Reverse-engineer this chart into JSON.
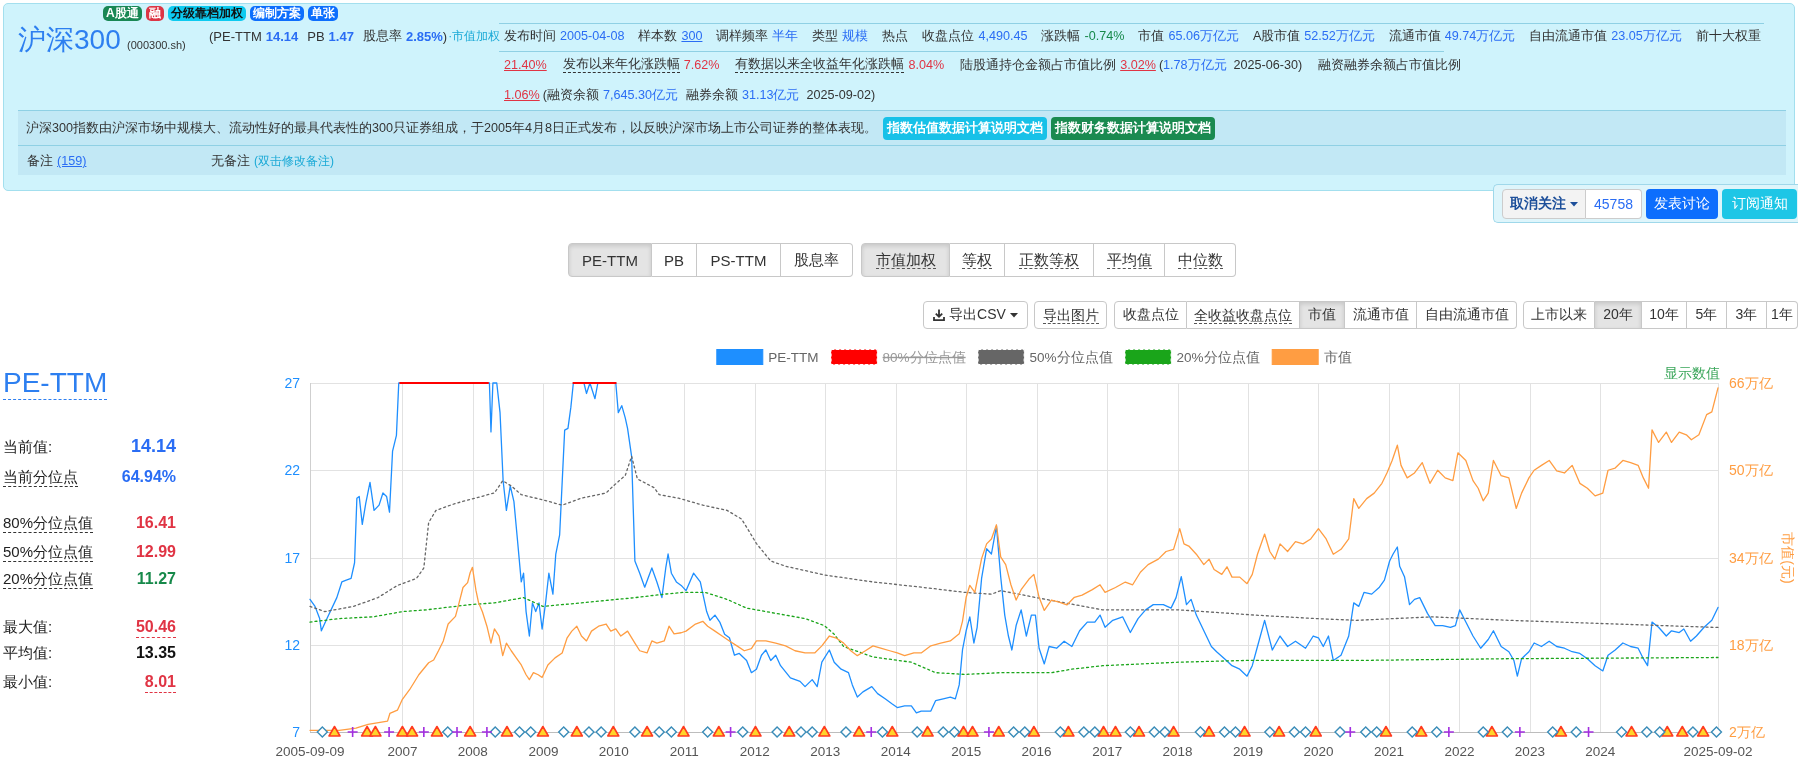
{
  "chart_data": [
    {
      "type": "other",
      "title": "沪深300",
      "subtitle": "(000300.sh)",
      "annotations": [
        "A股通",
        "融",
        "分级靠档加权",
        "编制方案",
        "单张",
        "(PE-TTM",
        "14.14",
        "PB",
        "1.47",
        "股息率",
        "2.85%",
        ")",
        "·市值加权",
        "发布时间",
        "2005-04-08",
        "样本数",
        "300",
        "调样频率",
        "半年",
        "类型",
        "规模",
        "热点",
        "收盘点位",
        "4,490.45",
        "涨跌幅",
        "-0.74%",
        "市值",
        "65.06万亿元",
        "A股市值",
        "52.52万亿元",
        "流通市值",
        "49.74万亿元",
        "自由流通市值",
        "23.05万亿元",
        "前十大权重",
        "21.40%",
        "发布以来年化涨跌幅",
        "7.62%",
        "有数据以来全收益年化涨跌幅",
        "8.04%",
        "陆股通持仓金额占市值比例",
        "3.02%",
        "(",
        "1.78万亿元",
        "2025-06-30)",
        "融资融券余额占市值比例",
        "1.06%",
        "(",
        "融资余额",
        "7,645.30亿元",
        "融券余额",
        "31.13亿元",
        "2025-09-02)",
        "沪深300指数由沪深市场中规模大、流动性好的最具代表性的300只证券组成，于2005年4月8日正式发布，以反映沪深市场上市公司证券的整体表现。",
        "指数估值数据计算说明文档",
        "指数财务数据计算说明文档",
        "备注",
        "(159)",
        "无备注",
        "(双击修改备注)",
        "取消关注",
        "45758",
        "发表讨论",
        "订阅通知"
      ]
    },
    {
      "type": "other",
      "annotations": [
        "PE-TTM",
        "PB",
        "PS-TTM",
        "股息率",
        "市值加权",
        "等权",
        "正数等权",
        "平均值",
        "中位数",
        "导出CSV",
        "导出图片",
        "收盘点位",
        "全收益收盘点位",
        "市值",
        "流通市值",
        "自由流通市值",
        "上市以来",
        "20年",
        "10年",
        "5年",
        "3年",
        "1年"
      ]
    },
    {
      "type": "other",
      "title": "PE-TTM",
      "annotations": [
        "当前值:",
        "14.14",
        "当前分位点",
        "64.94%",
        "80%分位点值",
        "16.41",
        "50%分位点值",
        "12.99",
        "20%分位点值",
        "11.27",
        "最大值:",
        "50.46",
        "平均值:",
        "13.35",
        "最小值:",
        "8.01"
      ]
    },
    {
      "type": "line",
      "legend": "top",
      "grid": true,
      "annotations": [
        "显示数值"
      ],
      "xlim": [
        "2005-09-09",
        "2025-09-02"
      ],
      "xticks": [
        "2005-09-09",
        "2007",
        "2008",
        "2009",
        "2010",
        "2011",
        "2012",
        "2013",
        "2014",
        "2015",
        "2016",
        "2017",
        "2018",
        "2019",
        "2020",
        "2021",
        "2022",
        "2023",
        "2024",
        "2025-09-02"
      ],
      "ylim": [
        7,
        27
      ],
      "yticks": [
        7,
        12,
        17,
        22,
        27
      ],
      "y2lim": [
        2,
        66
      ],
      "y2ticks": [
        {
          "value": 2,
          "label": "2万亿"
        },
        {
          "value": 18,
          "label": "18万亿"
        },
        {
          "value": 34,
          "label": "34万亿"
        },
        {
          "value": 50,
          "label": "50万亿"
        },
        {
          "value": 66,
          "label": "66万亿"
        }
      ],
      "y2label": "市值(元)",
      "series": [
        {
          "name": "PE-TTM",
          "color": "#1e8fff",
          "x": [
            "2005-09-09",
            "2005-10-05",
            "2005-10-29",
            "2005-11-07",
            "2005-12-06",
            "2006-01-26",
            "2006-02-21",
            "2006-03-16",
            "2006-04-10",
            "2006-04-28",
            "2006-05-10",
            "2006-05-22",
            "2006-06-07",
            "2006-06-25",
            "2006-07-17",
            "2006-08-07",
            "2006-09-02",
            "2006-09-22",
            "2006-10-11",
            "2006-10-26",
            "2006-11-11",
            "2006-12-01",
            "2006-12-13",
            "2008-03-27",
            "2008-04-04",
            "2008-04-14",
            "2008-05-04",
            "2008-05-21",
            "2008-06-06",
            "2008-06-23",
            "2008-07-13",
            "2008-08-01",
            "2008-08-21",
            "2008-09-08",
            "2008-09-20",
            "2008-10-03",
            "2008-10-20",
            "2008-11-05",
            "2008-11-22",
            "2008-12-09",
            "2008-12-25",
            "2009-01-12",
            "2009-01-29",
            "2009-02-19",
            "2009-03-06",
            "2009-03-26",
            "2009-04-21",
            "2009-05-08",
            "2009-05-23",
            "2009-06-05",
            "2009-07-30",
            "2009-08-12",
            "2009-08-30",
            "2009-09-25",
            "2009-10-10",
            "2010-01-11",
            "2010-01-24",
            "2010-02-11",
            "2010-03-01",
            "2010-03-13",
            "2010-04-03",
            "2010-04-20",
            "2010-05-15",
            "2010-06-10",
            "2010-06-30",
            "2010-07-17",
            "2010-08-12",
            "2010-09-07",
            "2010-09-27",
            "2010-10-09",
            "2010-10-26",
            "2010-11-21",
            "2010-12-16",
            "2011-01-10",
            "2011-02-18",
            "2011-03-25",
            "2011-04-27",
            "2011-05-14",
            "2011-06-09",
            "2011-07-04",
            "2011-07-29",
            "2011-08-23",
            "2011-09-18",
            "2011-10-13",
            "2011-11-20",
            "2011-12-15",
            "2012-01-10",
            "2012-02-05",
            "2012-02-28",
            "2012-03-24",
            "2012-04-19",
            "2012-05-14",
            "2012-07-04",
            "2012-08-23",
            "2012-09-18",
            "2012-10-25",
            "2012-11-20",
            "2012-12-14",
            "2013-01-22",
            "2013-02-16",
            "2013-03-24",
            "2013-05-01",
            "2013-05-21",
            "2013-06-16",
            "2013-07-15",
            "2013-08-30",
            "2013-09-29",
            "2013-11-07",
            "2013-12-14",
            "2014-01-09",
            "2014-02-16",
            "2014-03-23",
            "2014-04-18",
            "2014-05-13",
            "2014-07-02",
            "2014-07-27",
            "2014-09-04",
            "2014-10-11",
            "2014-11-06",
            "2014-11-26",
            "2014-12-13",
            "2015-01-01",
            "2015-01-20",
            "2015-02-10",
            "2015-02-27",
            "2015-03-22",
            "2015-04-17",
            "2015-05-12",
            "2015-06-07",
            "2015-06-29",
            "2015-07-20",
            "2015-08-08",
            "2015-08-26",
            "2015-09-17",
            "2015-10-13",
            "2015-11-09",
            "2015-12-05",
            "2015-12-26",
            "2016-01-14",
            "2016-02-10",
            "2016-03-06",
            "2016-04-14",
            "2016-05-23",
            "2016-07-02",
            "2016-08-11",
            "2016-09-20",
            "2016-10-29",
            "2016-11-25",
            "2016-12-21",
            "2017-01-30",
            "2017-03-22",
            "2017-05-01",
            "2017-06-10",
            "2017-07-19",
            "2017-08-28",
            "2017-10-19",
            "2017-11-28",
            "2017-12-24",
            "2018-01-20",
            "2018-02-16",
            "2018-03-12",
            "2018-04-08",
            "2018-05-17",
            "2018-06-25",
            "2018-07-22",
            "2018-09-01",
            "2018-10-10",
            "2018-11-19",
            "2018-12-27",
            "2019-01-23",
            "2019-02-19",
            "2019-03-28",
            "2019-05-07",
            "2019-06-16",
            "2019-07-25",
            "2019-09-04",
            "2019-10-26",
            "2019-12-05",
            "2020-01-01",
            "2020-01-26",
            "2020-02-22",
            "2020-03-18",
            "2020-04-27",
            "2020-06-06",
            "2020-07-02",
            "2020-07-28",
            "2020-08-24",
            "2020-10-03",
            "2020-11-12",
            "2020-12-08",
            "2021-01-04",
            "2021-01-22",
            "2021-02-13",
            "2021-02-25",
            "2021-03-22",
            "2021-04-17",
            "2021-05-13",
            "2021-06-09",
            "2021-07-19",
            "2021-08-28",
            "2021-10-06",
            "2021-11-15",
            "2021-12-11",
            "2022-01-02",
            "2022-02-03",
            "2022-03-12",
            "2022-04-21",
            "2022-05-30",
            "2022-06-26",
            "2022-08-05",
            "2022-09-14",
            "2022-10-10",
            "2022-10-28",
            "2022-11-19",
            "2022-12-27",
            "2023-01-23",
            "2023-03-02",
            "2023-04-11",
            "2023-05-20",
            "2023-06-29",
            "2023-08-08",
            "2023-09-17",
            "2023-10-26",
            "2023-12-05",
            "2024-01-14",
            "2024-02-10",
            "2024-03-18",
            "2024-04-27",
            "2024-06-06",
            "2024-07-15",
            "2024-08-11",
            "2024-09-02",
            "2024-09-25",
            "2024-10-29",
            "2024-12-08",
            "2025-01-04",
            "2025-02-13",
            "2025-03-09",
            "2025-04-13",
            "2025-05-13",
            "2025-06-22",
            "2025-08-01",
            "2025-09-02"
          ],
          "values": [
            14.6,
            14.2,
            13.5,
            12.8,
            13.5,
            14.7,
            15.6,
            15.7,
            15.8,
            16.7,
            20.4,
            20.5,
            18.9,
            20.1,
            21.3,
            19.7,
            20.0,
            20.7,
            20.5,
            19.6,
            23.1,
            24.0,
            27,
            27,
            24.2,
            27,
            27,
            25.3,
            21.4,
            19.7,
            21.1,
            20.2,
            17.8,
            15.6,
            16.1,
            13.9,
            12.5,
            14.4,
            13.9,
            14.4,
            12.9,
            14.4,
            16.1,
            14.9,
            17.2,
            18.3,
            24.3,
            24.4,
            25.6,
            27,
            27,
            26.4,
            27,
            26.1,
            27,
            27,
            25.3,
            25.7,
            25.0,
            24.4,
            22.8,
            16.8,
            16.1,
            15.3,
            15.9,
            16.4,
            15.6,
            14.7,
            16.4,
            17.2,
            16.1,
            15.6,
            15.4,
            15.1,
            16.1,
            15.6,
            13.9,
            13.4,
            13.7,
            13.3,
            12.6,
            12.4,
            11.4,
            11.5,
            11.1,
            10.4,
            10.6,
            11.4,
            11.7,
            11.1,
            11.4,
            10.8,
            10.1,
            9.9,
            9.6,
            10.0,
            9.6,
            11.0,
            11.7,
            11.0,
            10.6,
            10.4,
            9.7,
            9.0,
            9.3,
            9.6,
            9.2,
            8.9,
            8.6,
            8.4,
            8.5,
            8.5,
            8.1,
            8.2,
            8.2,
            8.8,
            8.9,
            9.0,
            8.9,
            9.7,
            11.7,
            12.8,
            13.6,
            12.1,
            13.0,
            15.8,
            17.5,
            17.2,
            18.8,
            15.9,
            13.7,
            12.5,
            11.7,
            13.1,
            14.0,
            12.5,
            13.7,
            13.7,
            11.8,
            10.9,
            11.9,
            11.8,
            12.2,
            11.9,
            12.8,
            13.3,
            13.3,
            13.7,
            13.0,
            13.4,
            13.6,
            12.7,
            13.5,
            14.0,
            14.3,
            14.3,
            14.1,
            14.7,
            15.9,
            14.3,
            14.6,
            13.7,
            12.8,
            11.9,
            11.6,
            11.2,
            10.8,
            10.6,
            10.2,
            10.8,
            11.9,
            13.4,
            11.7,
            12.5,
            11.9,
            12.2,
            11.8,
            12.5,
            12.4,
            11.9,
            12.5,
            11.1,
            11.4,
            12.5,
            14.4,
            14.2,
            15.0,
            14.9,
            15.3,
            15.7,
            16.8,
            17.2,
            17.6,
            16.5,
            15.9,
            14.3,
            14.6,
            14.7,
            13.8,
            13.1,
            13.1,
            13.0,
            13.1,
            14.0,
            13.3,
            12.5,
            11.8,
            12.3,
            12.8,
            11.9,
            11.6,
            11.1,
            10.2,
            11.2,
            11.6,
            12.1,
            11.9,
            12.2,
            11.9,
            11.8,
            11.6,
            11.5,
            11.2,
            10.8,
            10.5,
            11.4,
            11.7,
            12.1,
            11.9,
            11.8,
            11.2,
            10.8,
            13.3,
            13.0,
            12.5,
            12.8,
            12.7,
            12.9,
            12.2,
            12.5,
            13.0,
            13.4,
            14.14
          ]
        },
        {
          "name": "80%分位点值",
          "color": "#ff0000",
          "line_style": "dotted"
        },
        {
          "name": "50%分位点值",
          "color": "#666666",
          "line_style": "dotted",
          "x": [
            "2005-09-09",
            "2005-11-24",
            "2006-04-23",
            "2006-08-27",
            "2006-12-06",
            "2007-03-15",
            "2007-04-22",
            "2007-05-17",
            "2007-06-24",
            "2007-10-03",
            "2008-01-13",
            "2008-04-22",
            "2008-06-04",
            "2008-07-18",
            "2008-09-08",
            "2008-12-29",
            "2009-04-08",
            "2009-07-17",
            "2009-11-22",
            "2009-12-29",
            "2010-03-01",
            "2010-04-03",
            "2010-05-03",
            "2010-07-29",
            "2010-08-24",
            "2010-12-03",
            "2011-04-07",
            "2011-08-11",
            "2011-10-25",
            "2011-12-03",
            "2012-01-10",
            "2012-03-24",
            "2012-06-09",
            "2012-12-27",
            "2013-09-05",
            "2014-05-13",
            "2014-12-26",
            "2015-05-12",
            "2015-06-29",
            "2016-01-01",
            "2016-12-08",
            "2018-01-07",
            "2019-02-06",
            "2019-12-18",
            "2020-07-15",
            "2021-08-14",
            "2022-09-14",
            "2024-02-22",
            "2025-09-02"
          ],
          "values": [
            14.2,
            13.9,
            14.2,
            14.7,
            15.4,
            15.8,
            16.4,
            19.0,
            19.7,
            20.1,
            20.4,
            20.7,
            21.4,
            21.1,
            20.6,
            20.3,
            20.0,
            20.4,
            20.7,
            21.1,
            21.7,
            22.8,
            21.5,
            21.0,
            20.6,
            20.4,
            20.0,
            19.7,
            19.2,
            18.5,
            17.8,
            16.8,
            16.5,
            16.0,
            15.6,
            15.3,
            15.0,
            14.9,
            15.1,
            14.7,
            14.0,
            14.0,
            13.7,
            13.5,
            13.4,
            13.6,
            13.4,
            13.2,
            12.99
          ]
        },
        {
          "name": "20%分位点值",
          "color": "#1aa51a",
          "line_style": "dotted",
          "x": [
            "2005-09-09",
            "2006-02-08",
            "2006-08-02",
            "2007-01-01",
            "2007-05-04",
            "2007-12-18",
            "2008-04-22",
            "2008-09-20",
            "2008-12-29",
            "2009-07-17",
            "2010-04-20",
            "2010-09-19",
            "2010-12-28",
            "2011-04-20",
            "2011-08-11",
            "2011-11-20",
            "2012-04-19",
            "2012-09-18",
            "2012-12-27",
            "2013-02-16",
            "2013-04-06",
            "2013-09-05",
            "2014-03-23",
            "2014-07-27",
            "2014-12-26",
            "2015-06-29",
            "2016-03-18",
            "2016-07-02",
            "2016-12-08",
            "2018-01-07",
            "2018-12-14",
            "2020-07-15",
            "2022-09-14",
            "2025-09-02"
          ],
          "values": [
            13.3,
            13.5,
            13.6,
            13.9,
            14.0,
            14.3,
            14.4,
            14.7,
            14.2,
            14.4,
            14.7,
            14.9,
            15.0,
            15.0,
            14.6,
            14.1,
            13.8,
            13.5,
            13.1,
            12.6,
            11.9,
            11.3,
            11.0,
            10.4,
            10.3,
            10.4,
            10.4,
            10.6,
            10.8,
            11.0,
            11.1,
            11.1,
            11.2,
            11.27
          ]
        },
        {
          "name": "市值",
          "color": "#ff9d42",
          "axis": "y2",
          "x": [
            "2005-09-09",
            "2006-02-08",
            "2006-05-05",
            "2006-07-07",
            "2006-10-16",
            "2006-10-28",
            "2006-12-06",
            "2007-01-01",
            "2007-02-08",
            "2007-03-27",
            "2007-05-17",
            "2007-06-12",
            "2007-07-07",
            "2007-08-01",
            "2007-08-26",
            "2007-10-03",
            "2007-10-16",
            "2007-11-11",
            "2007-12-05",
            "2007-12-18",
            "2007-12-30",
            "2008-01-17",
            "2008-01-30",
            "2008-02-20",
            "2008-03-14",
            "2008-04-04",
            "2008-04-22",
            "2008-05-16",
            "2008-06-04",
            "2008-06-23",
            "2008-07-18",
            "2008-08-13",
            "2008-09-08",
            "2008-10-03",
            "2008-10-20",
            "2008-11-10",
            "2008-12-05",
            "2008-12-25",
            "2009-01-24",
            "2009-03-02",
            "2009-04-08",
            "2009-05-03",
            "2009-05-28",
            "2009-06-23",
            "2009-07-17",
            "2009-08-12",
            "2009-09-07",
            "2009-10-14",
            "2009-11-22",
            "2009-12-16",
            "2010-01-11",
            "2010-02-06",
            "2010-03-13",
            "2010-04-20",
            "2010-05-15",
            "2010-06-22",
            "2010-07-17",
            "2010-08-12",
            "2010-09-19",
            "2010-10-14",
            "2010-11-09",
            "2010-12-16",
            "2011-01-10",
            "2011-02-28",
            "2011-04-07",
            "2011-05-02",
            "2011-06-09",
            "2011-07-16",
            "2011-08-23",
            "2011-10-01",
            "2011-11-08",
            "2011-12-15",
            "2012-01-10",
            "2012-02-28",
            "2012-04-19",
            "2012-06-09",
            "2012-07-28",
            "2012-09-18",
            "2012-11-07",
            "2012-12-14",
            "2013-01-22",
            "2013-02-28",
            "2013-04-06",
            "2013-05-13",
            "2013-06-16",
            "2013-07-28",
            "2013-09-05",
            "2013-10-24",
            "2013-12-01",
            "2014-01-09",
            "2014-02-16",
            "2014-04-05",
            "2014-05-13",
            "2014-07-02",
            "2014-08-22",
            "2014-10-11",
            "2014-11-26",
            "2014-12-13",
            "2015-01-01",
            "2015-01-20",
            "2015-02-15",
            "2015-03-22",
            "2015-04-17",
            "2015-05-12",
            "2015-06-07",
            "2015-06-29",
            "2015-07-25",
            "2015-08-21",
            "2015-09-17",
            "2015-10-13",
            "2015-11-22",
            "2015-12-18",
            "2016-01-14",
            "2016-02-10",
            "2016-03-18",
            "2016-04-27",
            "2016-06-06",
            "2016-07-15",
            "2016-08-24",
            "2016-10-16",
            "2016-11-25",
            "2016-12-21",
            "2017-02-13",
            "2017-04-05",
            "2017-05-13",
            "2017-06-22",
            "2017-08-01",
            "2017-09-23",
            "2017-11-02",
            "2017-12-11",
            "2018-01-12",
            "2018-02-03",
            "2018-02-28",
            "2018-04-08",
            "2018-05-17",
            "2018-06-13",
            "2018-07-09",
            "2018-08-18",
            "2018-09-14",
            "2018-10-10",
            "2018-11-19",
            "2018-12-27",
            "2019-01-23",
            "2019-02-19",
            "2019-03-28",
            "2019-04-24",
            "2019-05-20",
            "2019-06-16",
            "2019-07-25",
            "2019-09-04",
            "2019-10-13",
            "2019-11-22",
            "2020-01-01",
            "2020-02-10",
            "2020-03-18",
            "2020-04-27",
            "2020-06-06",
            "2020-07-02",
            "2020-07-28",
            "2020-09-07",
            "2020-10-16",
            "2020-11-25",
            "2020-12-21",
            "2021-01-17",
            "2021-02-13",
            "2021-03-04",
            "2021-04-05",
            "2021-05-13",
            "2021-06-22",
            "2021-08-01",
            "2021-09-10",
            "2021-10-19",
            "2021-11-28",
            "2021-12-24",
            "2022-02-03",
            "2022-03-12",
            "2022-04-08",
            "2022-05-04",
            "2022-05-30",
            "2022-06-26",
            "2022-08-05",
            "2022-09-14",
            "2022-10-22",
            "2022-11-19",
            "2022-12-27",
            "2023-01-23",
            "2023-03-02",
            "2023-04-11",
            "2023-05-20",
            "2023-06-29",
            "2023-08-08",
            "2023-09-17",
            "2023-10-26",
            "2023-12-05",
            "2024-01-14",
            "2024-02-10",
            "2024-03-18",
            "2024-04-27",
            "2024-06-06",
            "2024-07-15",
            "2024-08-11",
            "2024-09-07",
            "2024-09-25",
            "2024-10-29",
            "2024-12-08",
            "2025-01-04",
            "2025-02-13",
            "2025-03-22",
            "2025-04-17",
            "2025-05-26",
            "2025-07-05",
            "2025-08-01",
            "2025-09-02"
          ],
          "values": [
            2.3,
            2.3,
            2.7,
            3.4,
            4.0,
            5.4,
            6.0,
            8.0,
            9.8,
            12.5,
            14.7,
            15.2,
            16.9,
            18.7,
            21.8,
            23.2,
            24.9,
            28.5,
            29.4,
            31.2,
            32.2,
            28.0,
            25.8,
            24.0,
            21.4,
            18.3,
            20.9,
            19.6,
            16.0,
            18.3,
            16.9,
            15.6,
            14.3,
            12.5,
            11.6,
            12.9,
            12.5,
            12.0,
            14.3,
            15.6,
            16.5,
            19.2,
            20.5,
            21.4,
            19.6,
            18.7,
            20.5,
            21.4,
            21.8,
            20.5,
            20.9,
            19.6,
            20.5,
            18.3,
            16.9,
            16.5,
            18.7,
            18.3,
            18.7,
            21.4,
            20.0,
            20.2,
            20.5,
            21.8,
            22.3,
            21.4,
            20.5,
            19.6,
            18.7,
            17.8,
            16.9,
            17.3,
            18.7,
            18.7,
            18.3,
            17.8,
            16.9,
            16.5,
            16.5,
            17.8,
            19.6,
            19.2,
            18.3,
            16.9,
            16.0,
            16.9,
            17.8,
            17.3,
            16.9,
            16.5,
            16.0,
            16.5,
            16.5,
            17.8,
            18.3,
            18.7,
            20.0,
            22.3,
            26.7,
            28.9,
            27.6,
            33.8,
            36.5,
            37.4,
            40.0,
            34.1,
            32.7,
            29.0,
            26.2,
            28.1,
            30.0,
            30.9,
            26.7,
            24.3,
            26.2,
            25.8,
            25.3,
            26.7,
            27.1,
            28.1,
            29.0,
            27.6,
            28.5,
            29.5,
            29.0,
            31.3,
            32.7,
            33.7,
            35.1,
            35.5,
            39.3,
            36.5,
            36.1,
            34.6,
            32.7,
            33.7,
            31.8,
            30.9,
            32.3,
            30.4,
            30.4,
            29.2,
            30.9,
            34.6,
            38.3,
            35.1,
            33.7,
            36.5,
            35.1,
            36.9,
            36.5,
            37.4,
            39.3,
            37.4,
            34.6,
            35.5,
            37.4,
            44.8,
            43.0,
            44.8,
            45.8,
            47.6,
            49.5,
            51.8,
            54.6,
            50.9,
            48.6,
            49.5,
            51.4,
            47.6,
            50.0,
            48.6,
            48.1,
            53.2,
            51.8,
            48.1,
            46.7,
            44.4,
            45.8,
            51.8,
            49.0,
            48.6,
            43.0,
            45.8,
            48.6,
            50.0,
            50.9,
            51.8,
            49.9,
            49.5,
            50.9,
            47.6,
            46.7,
            45.3,
            45.8,
            50.0,
            50.4,
            51.8,
            51.4,
            50.9,
            48.6,
            46.7,
            57.4,
            55.1,
            57.0,
            55.1,
            57.0,
            56.5,
            55.6,
            56.5,
            60.2,
            60.7,
            65.1
          ]
        },
        {
          "color": "#ff0000",
          "x": [
            "2006-12-20",
            "2008-03-20",
            "2008-04-01",
            "2009-06-05",
            "2010-01-11"
          ],
          "values": [
            27,
            27,
            null,
            27,
            27
          ]
        },
        {
          "type": "scatter",
          "marker": "triangle",
          "color": "#ff3b1f",
          "x": [
            "2006-01-14",
            "2006-07-02",
            "2006-08-14",
            "2007-01-01",
            "2007-02-20",
            "2007-06-29",
            "2007-12-18",
            "2008-06-26",
            "2008-12-29",
            "2009-06-23",
            "2009-12-29",
            "2010-06-22",
            "2010-12-28",
            "2011-06-29",
            "2012-01-05",
            "2012-06-28",
            "2012-12-27",
            "2013-06-25",
            "2013-12-14",
            "2014-06-15",
            "2014-12-18",
            "2015-02-03",
            "2015-06-19",
            "2015-12-18",
            "2016-06-14",
            "2016-12-13",
            "2017-02-13",
            "2017-06-15",
            "2017-12-11",
            "2018-06-13",
            "2018-12-14",
            "2019-06-11",
            "2019-12-18",
            "2020-12-16",
            "2021-06-17",
            "2022-06-18",
            "2023-06-11",
            "2024-06-11",
            "2024-12-13",
            "2025-03-01",
            "2025-06-17"
          ],
          "values": [
            7,
            7,
            7,
            7,
            7,
            7,
            7,
            7,
            7,
            7,
            7,
            7,
            7,
            7,
            7,
            7,
            7,
            7,
            7,
            7,
            7,
            7,
            7,
            7,
            7,
            7,
            7,
            7,
            7,
            7,
            7,
            7,
            7,
            7,
            7,
            7,
            7,
            7,
            7,
            7,
            7
          ]
        },
        {
          "type": "scatter",
          "marker": "diamond",
          "color": "#3a8cb8",
          "x": [
            "2005-11-12",
            "2007-08-24",
            "2008-04-26",
            "2008-08-30",
            "2008-10-27",
            "2009-04-16",
            "2009-08-25",
            "2009-10-27",
            "2010-04-20",
            "2010-08-24",
            "2010-10-26",
            "2011-05-02",
            "2011-10-31",
            "2012-04-26",
            "2012-08-28",
            "2012-10-25",
            "2013-04-18",
            "2013-10-24",
            "2014-04-22",
            "2014-09-04",
            "2014-11-01",
            "2015-09-04",
            "2015-11-01",
            "2016-05-03",
            "2016-09-02",
            "2016-10-29",
            "2017-05-01",
            "2017-09-02",
            "2017-10-27",
            "2018-04-29",
            "2018-09-01",
            "2018-10-28",
            "2019-04-24",
            "2019-08-29",
            "2019-10-26",
            "2020-04-22",
            "2020-09-02",
            "2020-10-29",
            "2021-05-01",
            "2021-09-05",
            "2022-05-04",
            "2022-09-06",
            "2023-04-29",
            "2023-08-29",
            "2024-04-20",
            "2024-08-29",
            "2024-11-04",
            "2025-04-25",
            "2025-08-25"
          ],
          "values": [
            7,
            7,
            7,
            7,
            7,
            7,
            7,
            7,
            7,
            7,
            7,
            7,
            7,
            7,
            7,
            7,
            7,
            7,
            7,
            7,
            7,
            7,
            7,
            7,
            7,
            7,
            7,
            7,
            7,
            7,
            7,
            7,
            7,
            7,
            7,
            7,
            7,
            7,
            7,
            7,
            7,
            7,
            7,
            7,
            7,
            7,
            7,
            7,
            7
          ]
        },
        {
          "type": "scatter",
          "marker": "cross",
          "color": "#a22ee0",
          "x": [
            "2006-04-18",
            "2006-10-24",
            "2007-04-22",
            "2007-10-11",
            "2008-03-14",
            "2011-08-29",
            "2013-08-27",
            "2015-04-29",
            "2020-06-14",
            "2021-11-07",
            "2022-11-10",
            "2023-11-01"
          ],
          "values": [
            7,
            7,
            7,
            7,
            7,
            7,
            7,
            7,
            7,
            7,
            7,
            7
          ]
        }
      ]
    }
  ]
}
